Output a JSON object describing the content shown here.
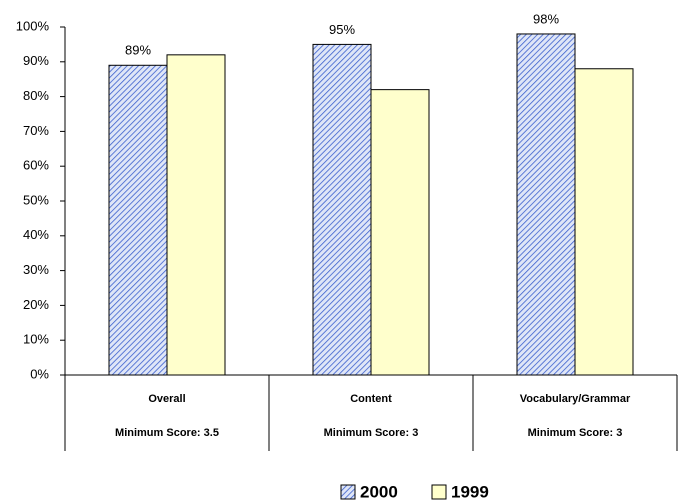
{
  "chart_data": {
    "type": "bar",
    "categories": [
      "Overall",
      "Content",
      "Vocabulary/Grammar"
    ],
    "category_notes": [
      "Minimum Score: 3.5",
      "Minimum Score: 3",
      "Minimum Score: 3"
    ],
    "series": [
      {
        "name": "2000",
        "color": "#3a5fcd",
        "hatch": true,
        "values": [
          89,
          95,
          98
        ],
        "value_labels": [
          "89%",
          "95%",
          "98%"
        ]
      },
      {
        "name": "1999",
        "color": "#ffffcc",
        "hatch": false,
        "values": [
          92,
          82,
          88
        ]
      }
    ],
    "ylim": [
      0,
      100
    ],
    "yticks": [
      {
        "value": 0,
        "label": "0%"
      },
      {
        "value": 10,
        "label": "10%"
      },
      {
        "value": 20,
        "label": "20%"
      },
      {
        "value": 30,
        "label": "30%"
      },
      {
        "value": 40,
        "label": "40%"
      },
      {
        "value": 50,
        "label": "50%"
      },
      {
        "value": 60,
        "label": "60%"
      },
      {
        "value": 70,
        "label": "70%"
      },
      {
        "value": 80,
        "label": "80%"
      },
      {
        "value": 90,
        "label": "90%"
      },
      {
        "value": 100,
        "label": "100%"
      }
    ],
    "grid": false,
    "legend": "bottom"
  }
}
